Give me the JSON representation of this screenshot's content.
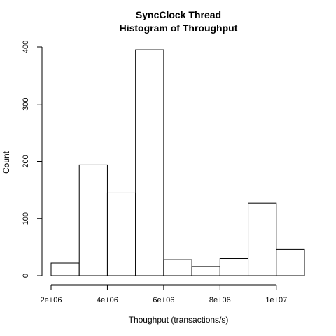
{
  "chart_data": {
    "type": "bar",
    "title": "SyncClock Thread",
    "subtitle": "Histogram of Throughput",
    "xlabel": "Thoughput (transactions/s)",
    "ylabel": "Count",
    "bins": [
      {
        "x0": 2000000,
        "x1": 3000000,
        "count": 22
      },
      {
        "x0": 3000000,
        "x1": 4000000,
        "count": 194
      },
      {
        "x0": 4000000,
        "x1": 5000000,
        "count": 145
      },
      {
        "x0": 5000000,
        "x1": 6000000,
        "count": 395
      },
      {
        "x0": 6000000,
        "x1": 7000000,
        "count": 28
      },
      {
        "x0": 7000000,
        "x1": 8000000,
        "count": 16
      },
      {
        "x0": 8000000,
        "x1": 9000000,
        "count": 30
      },
      {
        "x0": 9000000,
        "x1": 10000000,
        "count": 127
      },
      {
        "x0": 10000000,
        "x1": 11000000,
        "count": 46
      }
    ],
    "xticks": [
      {
        "value": 2000000,
        "label": "2e+06"
      },
      {
        "value": 4000000,
        "label": "4e+06"
      },
      {
        "value": 6000000,
        "label": "6e+06"
      },
      {
        "value": 8000000,
        "label": "8e+06"
      },
      {
        "value": 10000000,
        "label": "1e+07"
      }
    ],
    "yticks": [
      {
        "value": 0,
        "label": "0"
      },
      {
        "value": 100,
        "label": "100"
      },
      {
        "value": 200,
        "label": "200"
      },
      {
        "value": 300,
        "label": "300"
      },
      {
        "value": 400,
        "label": "400"
      }
    ],
    "xlim": [
      2000000,
      11000000
    ],
    "ylim": [
      0,
      400
    ],
    "grid": false,
    "legend": "none"
  }
}
